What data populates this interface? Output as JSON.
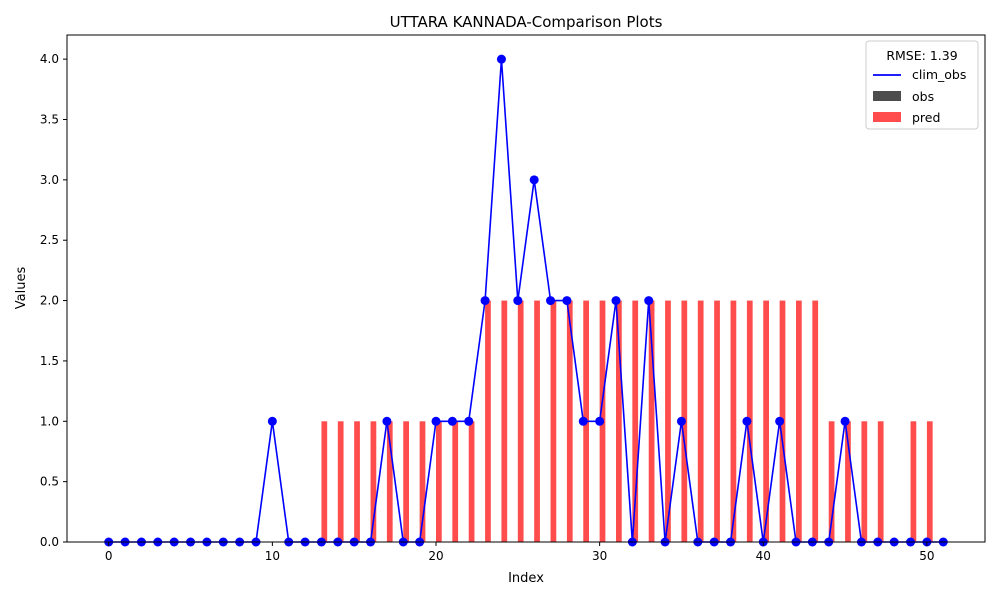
{
  "chart_data": {
    "type": "bar",
    "title": "UTTARA KANNADA-Comparison Plots",
    "xlabel": "Index",
    "ylabel": "Values",
    "xlim": [
      -2.55,
      53.55
    ],
    "ylim": [
      0,
      4.2
    ],
    "x_ticks": [
      0,
      10,
      20,
      30,
      40,
      50
    ],
    "y_ticks": [
      0.0,
      0.5,
      1.0,
      1.5,
      2.0,
      2.5,
      3.0,
      3.5,
      4.0
    ],
    "x_tick_labels": [
      "0",
      "10",
      "20",
      "30",
      "40",
      "50"
    ],
    "y_tick_labels": [
      "0.0",
      "0.5",
      "1.0",
      "1.5",
      "2.0",
      "2.5",
      "3.0",
      "3.5",
      "4.0"
    ],
    "grid": false,
    "legend": {
      "title": "RMSE: 1.39",
      "placement": "top-right",
      "entries": [
        "clim_obs",
        "obs",
        "pred"
      ]
    },
    "x": [
      0,
      1,
      2,
      3,
      4,
      5,
      6,
      7,
      8,
      9,
      10,
      11,
      12,
      13,
      14,
      15,
      16,
      17,
      18,
      19,
      20,
      21,
      22,
      23,
      24,
      25,
      26,
      27,
      28,
      29,
      30,
      31,
      32,
      33,
      34,
      35,
      36,
      37,
      38,
      39,
      40,
      41,
      42,
      43,
      44,
      45,
      46,
      47,
      48,
      49,
      50,
      51
    ],
    "series": [
      {
        "name": "clim_obs",
        "kind": "line",
        "color": "#0000ff",
        "values": [
          0,
          0,
          0,
          0,
          0,
          0,
          0,
          0,
          0,
          0,
          1,
          0,
          0,
          0,
          0,
          0,
          0,
          1,
          0,
          0,
          1,
          1,
          1,
          2,
          4,
          2,
          3,
          2,
          2,
          1,
          1,
          2,
          0,
          2,
          0,
          1,
          0,
          0,
          0,
          1,
          0,
          1,
          0,
          0,
          0,
          1,
          0,
          0,
          0,
          0,
          0,
          0
        ]
      },
      {
        "name": "obs",
        "kind": "bar",
        "color": "#4d4d4d",
        "values": [
          0,
          0,
          0,
          0,
          0,
          0,
          0,
          0,
          0,
          0,
          0,
          0,
          0,
          0,
          0,
          0,
          0,
          0,
          0,
          0,
          0,
          0,
          0,
          0,
          0,
          0,
          0,
          0,
          0,
          0,
          0,
          0,
          0,
          0,
          0,
          0,
          0,
          0,
          0,
          0,
          0,
          0,
          0,
          0,
          0,
          0,
          0,
          0,
          0,
          0,
          0,
          0
        ]
      },
      {
        "name": "pred",
        "kind": "bar",
        "color": "#ff4d4d",
        "values": [
          0,
          0,
          0,
          0,
          0,
          0,
          0,
          0,
          0,
          0,
          0,
          0,
          0,
          1,
          1,
          1,
          1,
          1,
          1,
          1,
          1,
          1,
          1,
          2,
          2,
          2,
          2,
          2,
          2,
          2,
          2,
          2,
          2,
          2,
          2,
          2,
          2,
          2,
          2,
          2,
          2,
          2,
          2,
          2,
          1,
          1,
          1,
          1,
          0,
          1,
          1,
          0
        ]
      }
    ]
  }
}
